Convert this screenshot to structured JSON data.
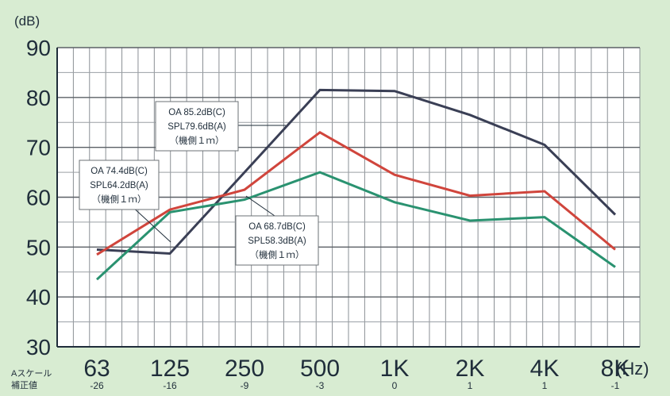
{
  "chart_data": {
    "type": "line",
    "y_unit": "(dB)",
    "x_unit": "(Hz)",
    "x": [
      "63",
      "125",
      "250",
      "500",
      "1K",
      "2K",
      "4K",
      "8K"
    ],
    "yticks": [
      "30",
      "40",
      "50",
      "60",
      "70",
      "80",
      "90"
    ],
    "ylim": [
      30,
      90
    ],
    "grid": true,
    "correction_label_line1": "Aスケール",
    "correction_label_line2": "補正値",
    "a_weighting": [
      "-26",
      "-16",
      "-9",
      "-3",
      "0",
      "1",
      "1",
      "-1"
    ],
    "series": [
      {
        "color": "#3a3f55",
        "values": [
          49.5,
          48.7,
          65,
          81.5,
          81.3,
          76.5,
          70.5,
          56.5
        ]
      },
      {
        "color": "#d0453c",
        "values": [
          48.5,
          57.5,
          61.5,
          73,
          64.5,
          60.3,
          61.2,
          49.5
        ]
      },
      {
        "color": "#2a9270",
        "values": [
          43.5,
          57,
          59.5,
          65,
          59,
          55.3,
          56,
          46
        ]
      }
    ],
    "annotations": [
      {
        "lines": [
          "OA 74.4dB(C)",
          "SPL64.2dB(A)",
          "（機側１ｍ）"
        ]
      },
      {
        "lines": [
          "OA 85.2dB(C)",
          "SPL79.6dB(A)",
          "（機側１ｍ）"
        ]
      },
      {
        "lines": [
          "OA 68.7dB(C)",
          "SPL58.3dB(A)",
          "（機側１ｍ）"
        ]
      }
    ]
  }
}
